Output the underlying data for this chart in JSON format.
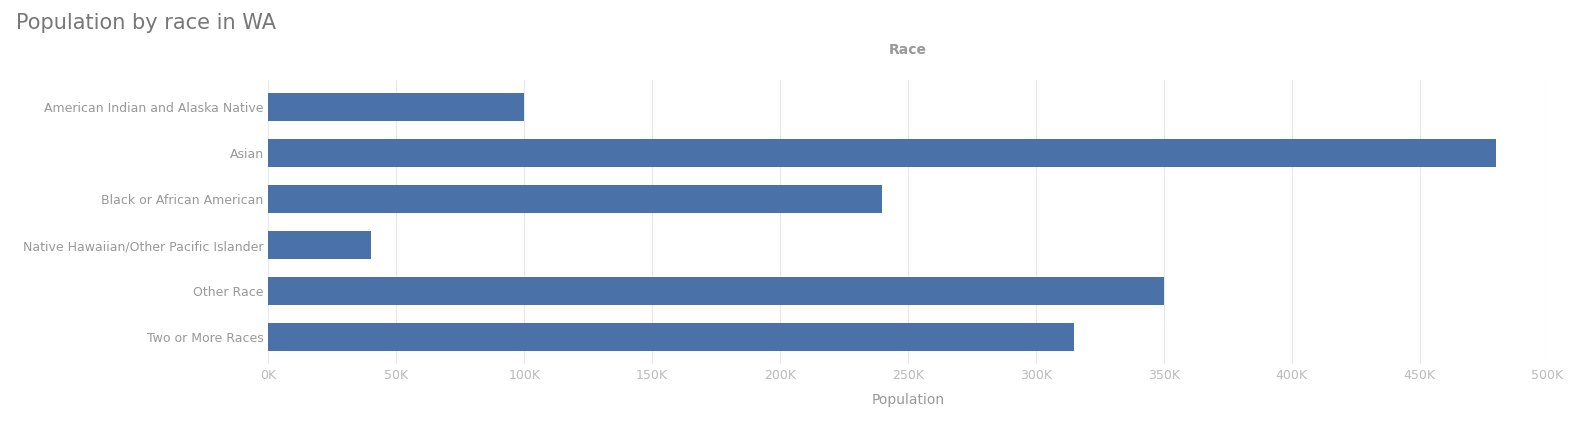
{
  "title": "Population by race in WA",
  "xlabel": "Population",
  "ylabel_top": "Race",
  "categories": [
    "American Indian and Alaska Native",
    "Asian",
    "Black or African American",
    "Native Hawaiian/Other Pacific Islander",
    "Other Race",
    "Two or More Races"
  ],
  "values": [
    100000,
    480000,
    240000,
    40000,
    350000,
    315000
  ],
  "bar_color": "#4a72a8",
  "background_color": "#ffffff",
  "title_color": "#777777",
  "label_color": "#999999",
  "tick_color": "#bbbbbb",
  "xlabel_color": "#999999",
  "xlim": [
    0,
    500000
  ],
  "xticks": [
    0,
    50000,
    100000,
    150000,
    200000,
    250000,
    300000,
    350000,
    400000,
    450000,
    500000
  ],
  "xtick_labels": [
    "0K",
    "50K",
    "100K",
    "150K",
    "200K",
    "250K",
    "300K",
    "350K",
    "400K",
    "450K",
    "500K"
  ],
  "title_fontsize": 15,
  "axis_label_fontsize": 10,
  "tick_fontsize": 9,
  "bar_height": 0.6
}
